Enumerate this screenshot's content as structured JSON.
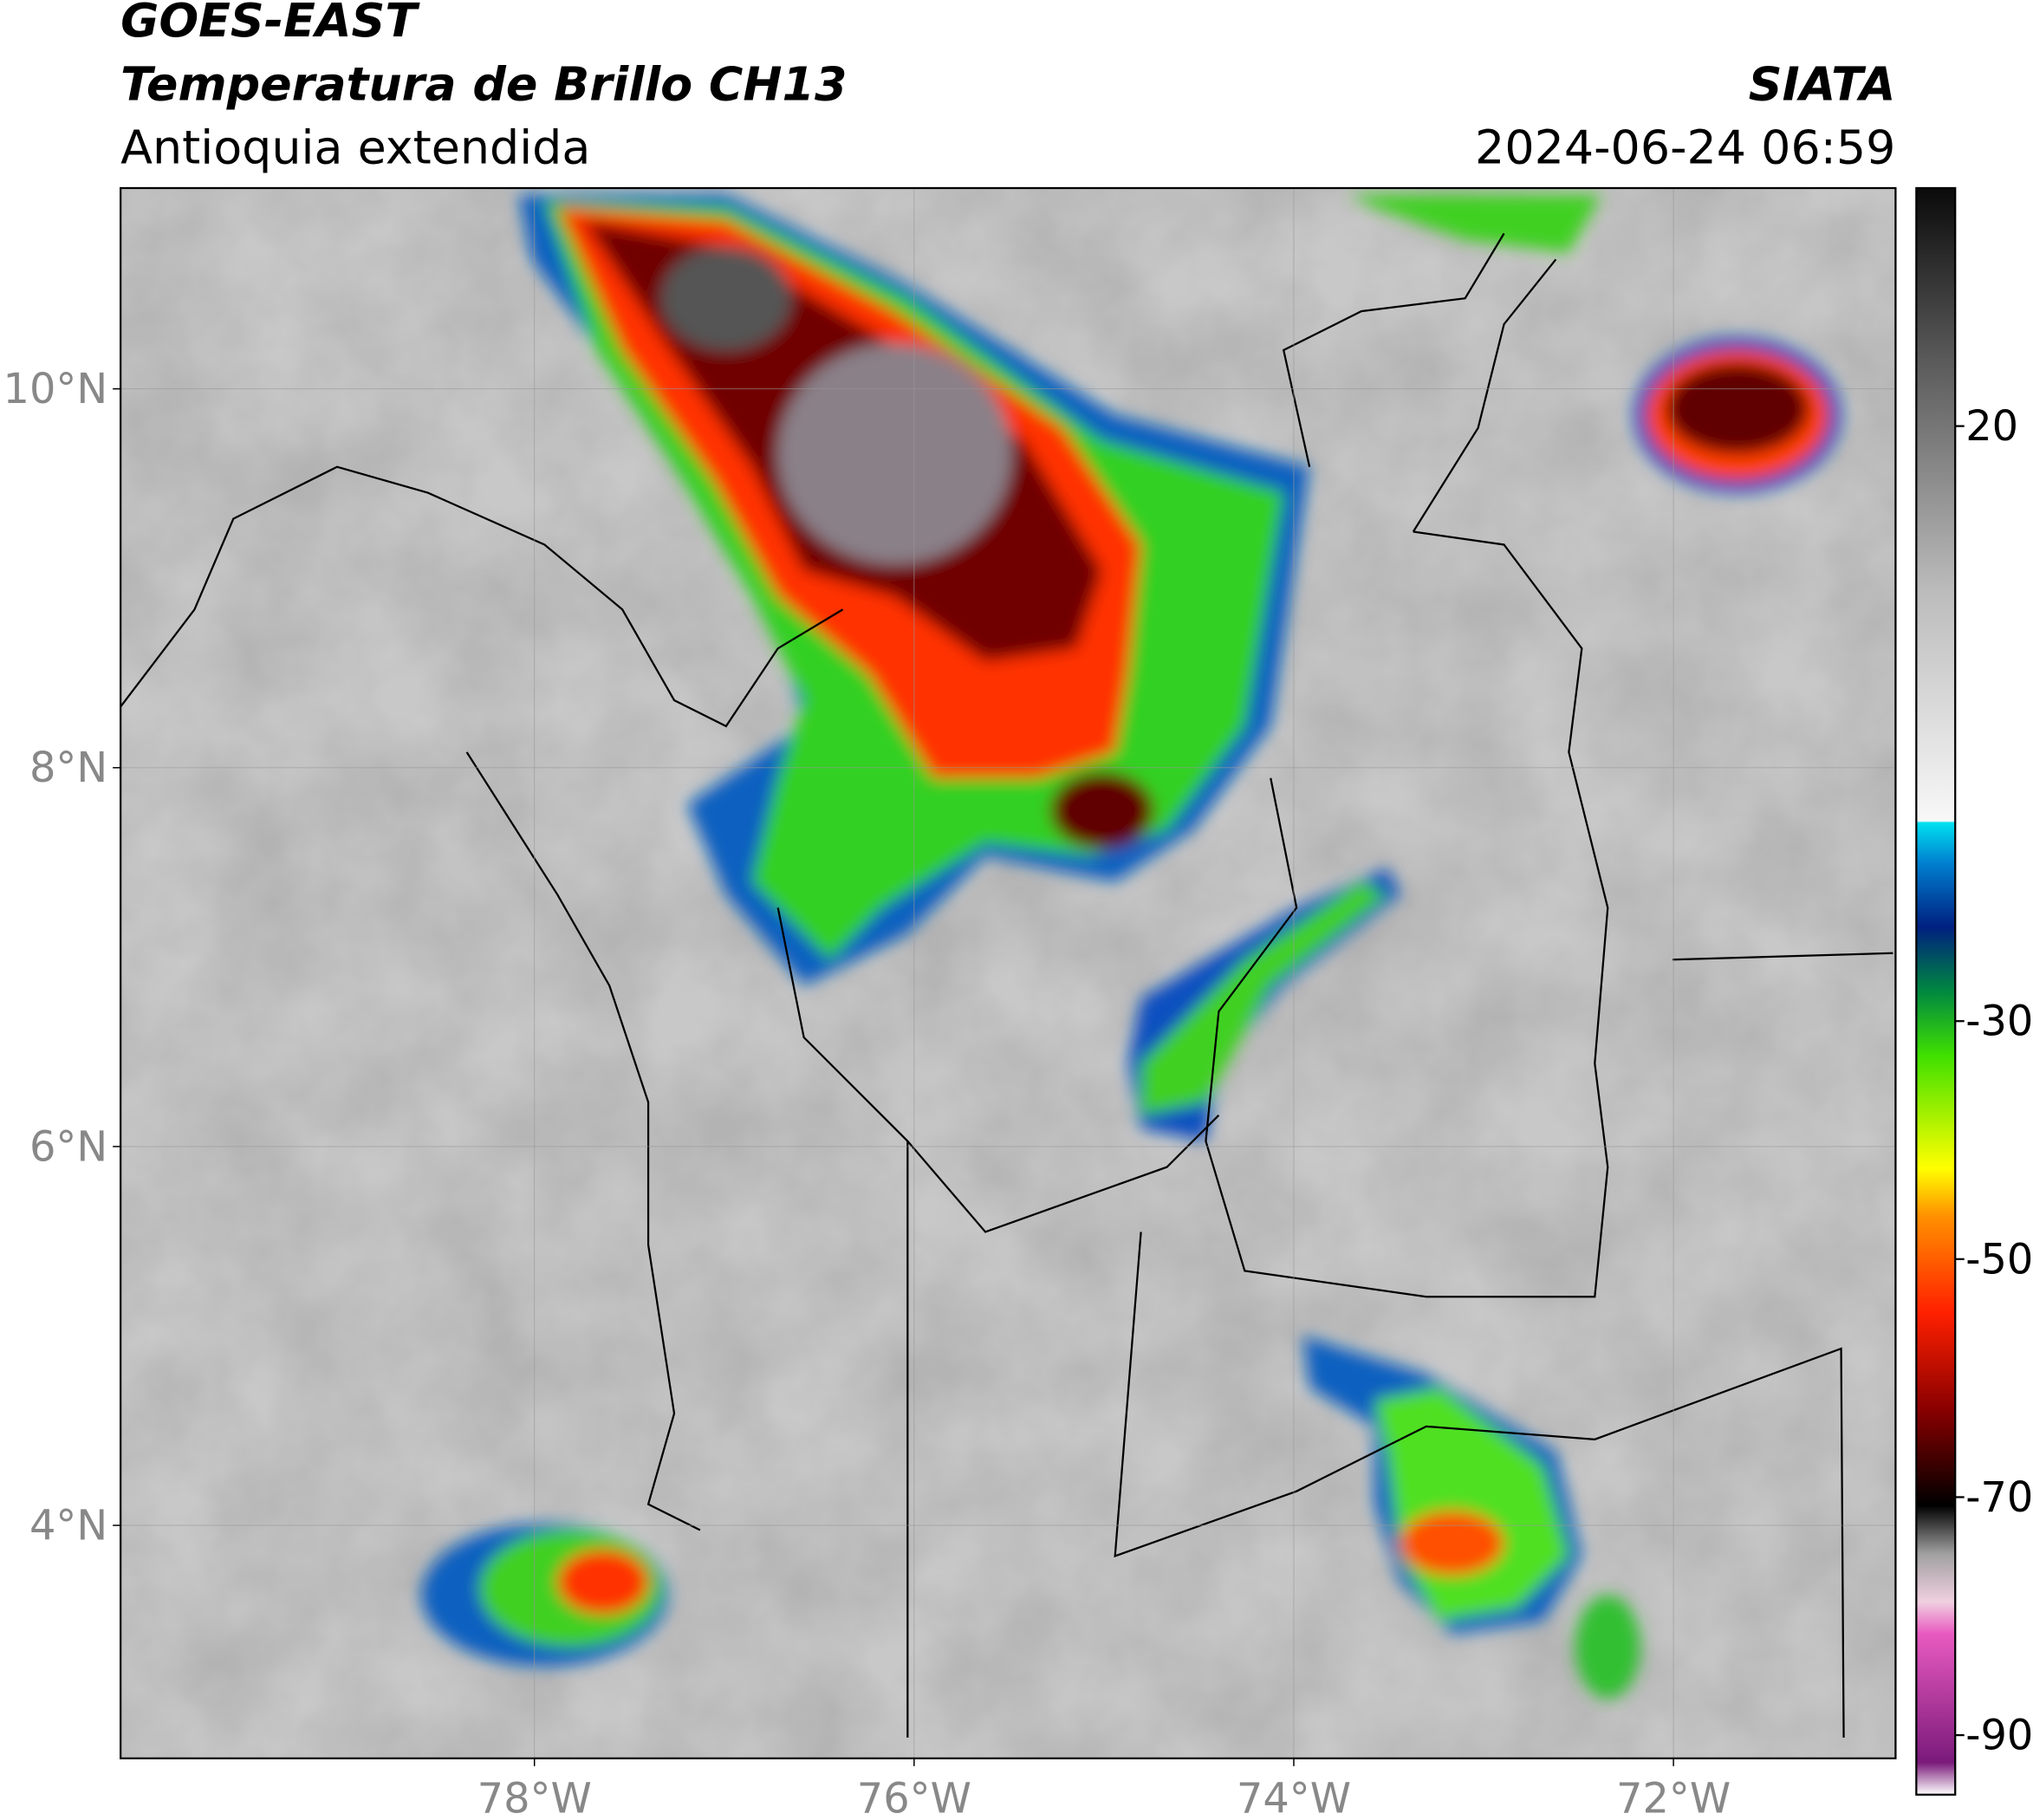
{
  "header": {
    "satellite": "GOES-EAST",
    "product": "Temperatura de Brillo CH13",
    "region": "Antioquia extendida",
    "source": "SIATA",
    "datetime": "2024-06-24 06:59"
  },
  "map": {
    "xlim": [
      -80.18,
      -70.83
    ],
    "ylim": [
      2.77,
      11.06
    ],
    "lat_ticks": [
      {
        "value": 10,
        "label": "10°N"
      },
      {
        "value": 8,
        "label": "8°N"
      },
      {
        "value": 6,
        "label": "6°N"
      },
      {
        "value": 4,
        "label": "4°N"
      }
    ],
    "lon_ticks": [
      {
        "value": -78,
        "label": "78°W"
      },
      {
        "value": -76,
        "label": "76°W"
      },
      {
        "value": -74,
        "label": "74°W"
      },
      {
        "value": -72,
        "label": "72°W"
      }
    ],
    "grid": true
  },
  "colorbar": {
    "range": [
      -95,
      40
    ],
    "ticks": [
      20,
      -30,
      -50,
      -70,
      -90
    ]
  }
}
